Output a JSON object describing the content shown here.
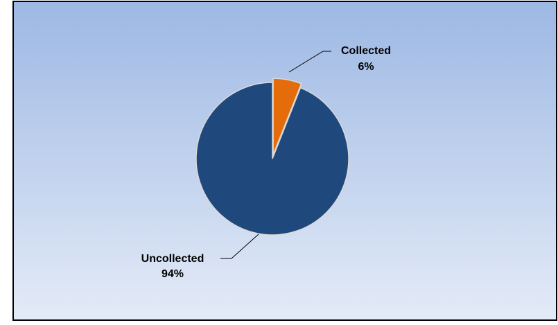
{
  "chart_data": {
    "type": "pie",
    "title": "",
    "slices": [
      {
        "label": "Uncollected",
        "value": 94,
        "value_label": "94%",
        "color": "#1f497d"
      },
      {
        "label": "Collected",
        "value": 6,
        "value_label": "6%",
        "color": "#e46c0a",
        "exploded": true
      }
    ],
    "legend": "none",
    "background_gradient": [
      "#9db8e4",
      "#e4ebf7"
    ],
    "border_color": "#000000",
    "slice_edge_color": "#d9d9d9"
  }
}
